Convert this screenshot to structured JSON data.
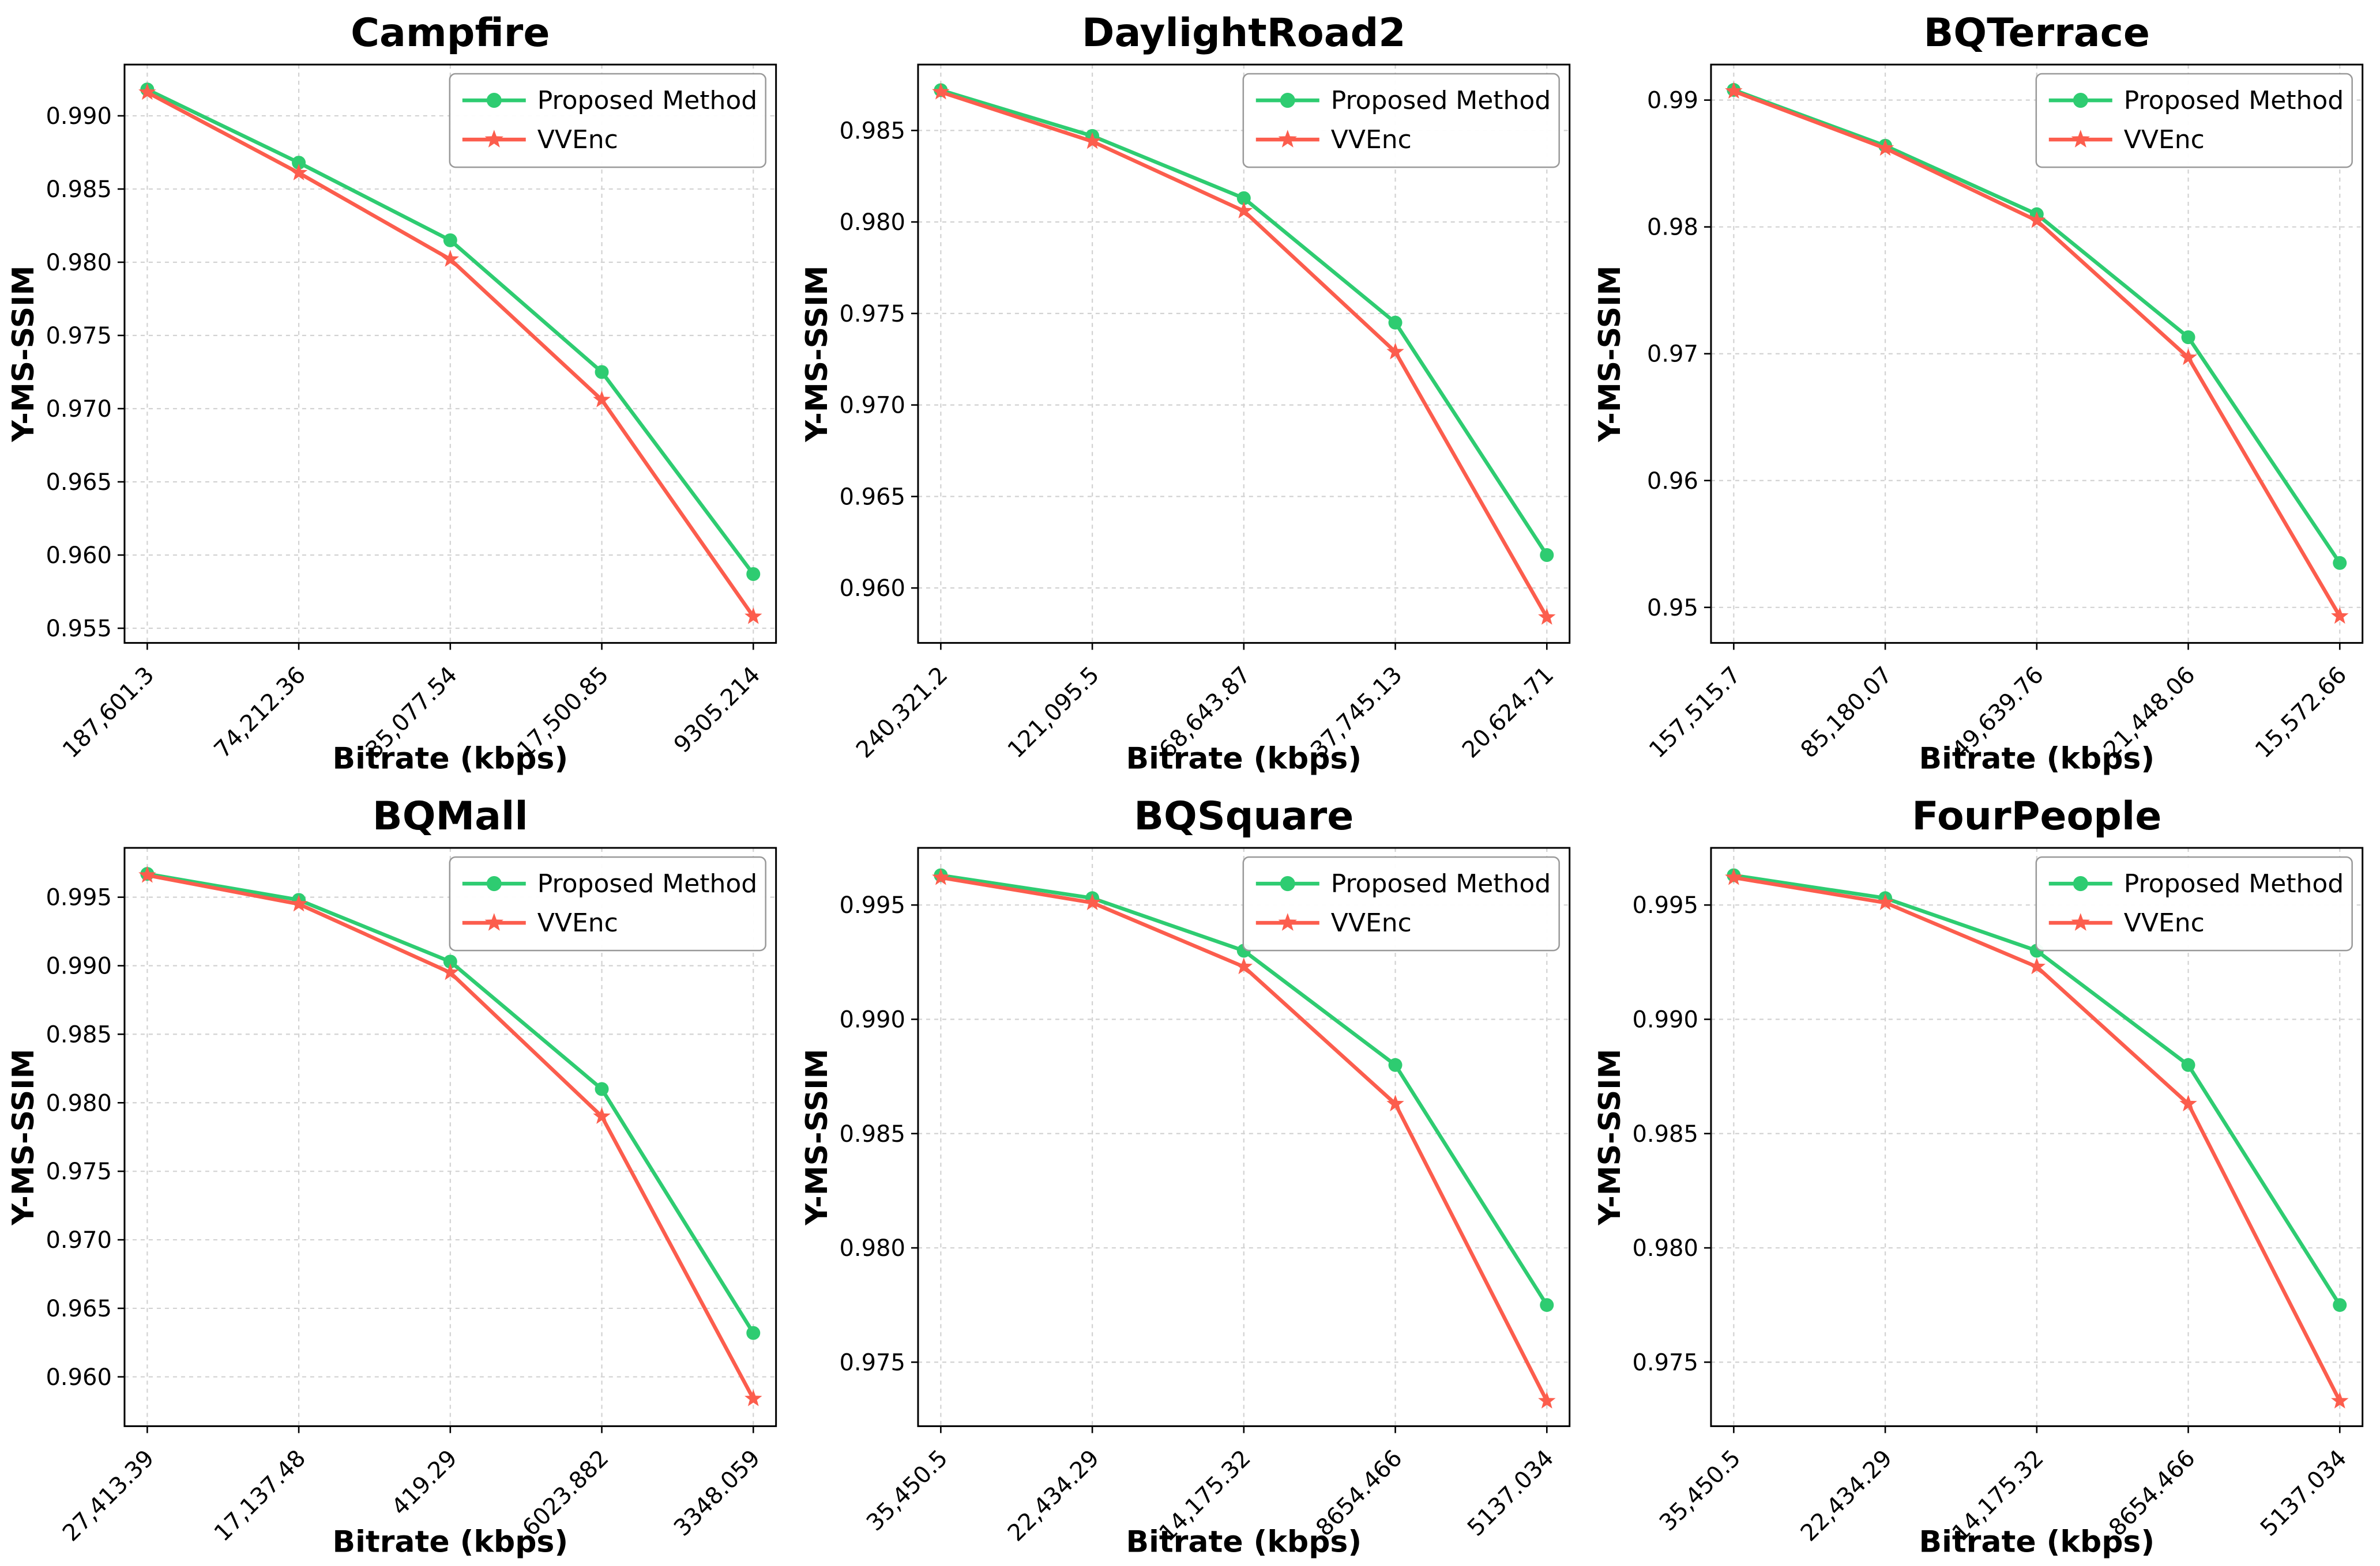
{
  "figure": {
    "background": "#ffffff",
    "rows": 2,
    "cols": 3,
    "grid_color": "#d2d2d2",
    "spine_color": "#000000",
    "legend_border_color": "#999999",
    "legend_background": "#ffffff",
    "accent_green": "#2ecc71",
    "accent_red": "#fc5d4d"
  },
  "legend": {
    "position": "top-right",
    "items": [
      {
        "label": "Proposed Method",
        "marker": "circle",
        "color": "#2ecc71"
      },
      {
        "label": "VVEnc",
        "marker": "star",
        "color": "#fc5d4d"
      }
    ]
  },
  "chart_data": [
    {
      "type": "line",
      "title": "Campfire",
      "xlabel": "Bitrate (kbps)",
      "ylabel": "Y-MS-SSIM",
      "grid": true,
      "legend_position": "top-right",
      "categories": [
        "187,601.3",
        "74,212.36",
        "35,077.54",
        "17,500.85",
        "9305.214"
      ],
      "yticks": [
        "0.990",
        "0.985",
        "0.980",
        "0.975",
        "0.970",
        "0.965",
        "0.960",
        "0.955"
      ],
      "ylim": [
        0.954,
        0.9935
      ],
      "series": [
        {
          "name": "Proposed Method",
          "marker": "circle",
          "color": "#2ecc71",
          "values": [
            0.9918,
            0.9868,
            0.9815,
            0.9725,
            0.9587
          ]
        },
        {
          "name": "VVEnc",
          "marker": "star",
          "color": "#fc5d4d",
          "values": [
            0.9916,
            0.9861,
            0.9802,
            0.9706,
            0.9558
          ]
        }
      ]
    },
    {
      "type": "line",
      "title": "DaylightRoad2",
      "xlabel": "Bitrate (kbps)",
      "ylabel": "Y-MS-SSIM",
      "grid": true,
      "legend_position": "top-right",
      "categories": [
        "240,321.2",
        "121,095.5",
        "68,643.87",
        "37,745.13",
        "20,624.71"
      ],
      "yticks": [
        "0.985",
        "0.980",
        "0.975",
        "0.970",
        "0.965",
        "0.960"
      ],
      "ylim": [
        0.957,
        0.9886
      ],
      "series": [
        {
          "name": "Proposed Method",
          "marker": "circle",
          "color": "#2ecc71",
          "values": [
            0.9872,
            0.9847,
            0.9813,
            0.9745,
            0.9618
          ]
        },
        {
          "name": "VVEnc",
          "marker": "star",
          "color": "#fc5d4d",
          "values": [
            0.9871,
            0.9844,
            0.9806,
            0.9729,
            0.9584
          ]
        }
      ]
    },
    {
      "type": "line",
      "title": "BQTerrace",
      "xlabel": "Bitrate (kbps)",
      "ylabel": "Y-MS-SSIM",
      "grid": true,
      "legend_position": "top-right",
      "categories": [
        "157,515.7",
        "85,180.07",
        "49,639.76",
        "21,448.06",
        "15,572.66"
      ],
      "yticks": [
        "0.99",
        "0.98",
        "0.97",
        "0.96",
        "0.95"
      ],
      "ylim": [
        0.9472,
        0.9928
      ],
      "series": [
        {
          "name": "Proposed Method",
          "marker": "circle",
          "color": "#2ecc71",
          "values": [
            0.9908,
            0.9864,
            0.981,
            0.9713,
            0.9535
          ]
        },
        {
          "name": "VVEnc",
          "marker": "star",
          "color": "#fc5d4d",
          "values": [
            0.9907,
            0.9862,
            0.9805,
            0.9697,
            0.9493
          ]
        }
      ]
    },
    {
      "type": "line",
      "title": "BQMall",
      "xlabel": "Bitrate (kbps)",
      "ylabel": "Y-MS-SSIM",
      "grid": true,
      "legend_position": "top-right",
      "categories": [
        "27,413.39",
        "17,137.48",
        "419.29",
        "6023.882",
        "3348.059"
      ],
      "yticks": [
        "0.995",
        "0.990",
        "0.985",
        "0.980",
        "0.975",
        "0.970",
        "0.965",
        "0.960"
      ],
      "ylim": [
        0.9564,
        0.9986
      ],
      "series": [
        {
          "name": "Proposed Method",
          "marker": "circle",
          "color": "#2ecc71",
          "values": [
            0.9967,
            0.9948,
            0.9903,
            0.981,
            0.9632
          ]
        },
        {
          "name": "VVEnc",
          "marker": "star",
          "color": "#fc5d4d",
          "values": [
            0.9966,
            0.9945,
            0.9895,
            0.979,
            0.9584
          ]
        }
      ]
    },
    {
      "type": "line",
      "title": "BQSquare",
      "xlabel": "Bitrate (kbps)",
      "ylabel": "Y-MS-SSIM",
      "grid": true,
      "legend_position": "top-right",
      "categories": [
        "35,450.5",
        "22,434.29",
        "14,175.32",
        "8654.466",
        "5137.034"
      ],
      "yticks": [
        "0.995",
        "0.990",
        "0.985",
        "0.980",
        "0.975"
      ],
      "ylim": [
        0.9722,
        0.9975
      ],
      "series": [
        {
          "name": "Proposed Method",
          "marker": "circle",
          "color": "#2ecc71",
          "values": [
            0.9963,
            0.9953,
            0.993,
            0.988,
            0.9775
          ]
        },
        {
          "name": "VVEnc",
          "marker": "star",
          "color": "#fc5d4d",
          "values": [
            0.9962,
            0.9951,
            0.9923,
            0.9863,
            0.9733
          ]
        }
      ]
    },
    {
      "type": "line",
      "title": "FourPeople",
      "xlabel": "Bitrate (kbps)",
      "ylabel": "Y-MS-SSIM",
      "grid": true,
      "legend_position": "top-right",
      "categories": [
        "35,450.5",
        "22,434.29",
        "14,175.32",
        "8654.466",
        "5137.034"
      ],
      "yticks": [
        "0.995",
        "0.990",
        "0.985",
        "0.980",
        "0.975"
      ],
      "ylim": [
        0.9722,
        0.9975
      ],
      "series": [
        {
          "name": "Proposed Method",
          "marker": "circle",
          "color": "#2ecc71",
          "values": [
            0.9963,
            0.9953,
            0.993,
            0.988,
            0.9775
          ]
        },
        {
          "name": "VVEnc",
          "marker": "star",
          "color": "#fc5d4d",
          "values": [
            0.9962,
            0.9951,
            0.9923,
            0.9863,
            0.9733
          ]
        }
      ]
    }
  ]
}
